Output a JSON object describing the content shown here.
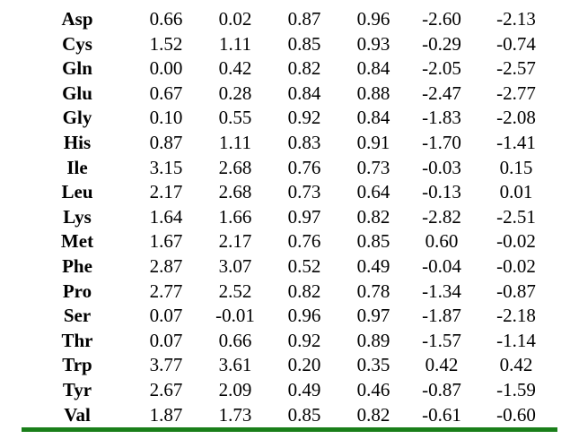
{
  "rule_color": "#1a7f1a",
  "rows": [
    {
      "name": "Asp",
      "values": [
        "0.66",
        "0.02",
        "0.87",
        "0.96",
        "-2.60",
        "-2.13"
      ]
    },
    {
      "name": "Cys",
      "values": [
        "1.52",
        "1.11",
        "0.85",
        "0.93",
        "-0.29",
        "-0.74"
      ]
    },
    {
      "name": "Gln",
      "values": [
        "0.00",
        "0.42",
        "0.82",
        "0.84",
        "-2.05",
        "-2.57"
      ]
    },
    {
      "name": "Glu",
      "values": [
        "0.67",
        "0.28",
        "0.84",
        "0.88",
        "-2.47",
        "-2.77"
      ]
    },
    {
      "name": "Gly",
      "values": [
        "0.10",
        "0.55",
        "0.92",
        "0.84",
        "-1.83",
        "-2.08"
      ]
    },
    {
      "name": "His",
      "values": [
        "0.87",
        "1.11",
        "0.83",
        "0.91",
        "-1.70",
        "-1.41"
      ]
    },
    {
      "name": "Ile",
      "values": [
        "3.15",
        "2.68",
        "0.76",
        "0.73",
        "-0.03",
        "0.15"
      ]
    },
    {
      "name": "Leu",
      "values": [
        "2.17",
        "2.68",
        "0.73",
        "0.64",
        "-0.13",
        "0.01"
      ]
    },
    {
      "name": "Lys",
      "values": [
        "1.64",
        "1.66",
        "0.97",
        "0.82",
        "-2.82",
        "-2.51"
      ]
    },
    {
      "name": "Met",
      "values": [
        "1.67",
        "2.17",
        "0.76",
        "0.85",
        "0.60",
        "-0.02"
      ]
    },
    {
      "name": "Phe",
      "values": [
        "2.87",
        "3.07",
        "0.52",
        "0.49",
        "-0.04",
        "-0.02"
      ]
    },
    {
      "name": "Pro",
      "values": [
        "2.77",
        "2.52",
        "0.82",
        "0.78",
        "-1.34",
        "-0.87"
      ]
    },
    {
      "name": "Ser",
      "values": [
        "0.07",
        "-0.01",
        "0.96",
        "0.97",
        "-1.87",
        "-2.18"
      ]
    },
    {
      "name": "Thr",
      "values": [
        "0.07",
        "0.66",
        "0.92",
        "0.89",
        "-1.57",
        "-1.14"
      ]
    },
    {
      "name": "Trp",
      "values": [
        "3.77",
        "3.61",
        "0.20",
        "0.35",
        "0.42",
        "0.42"
      ]
    },
    {
      "name": "Tyr",
      "values": [
        "2.67",
        "2.09",
        "0.49",
        "0.46",
        "-0.87",
        "-1.59"
      ]
    },
    {
      "name": "Val",
      "values": [
        "1.87",
        "1.73",
        "0.85",
        "0.82",
        "-0.61",
        "-0.60"
      ]
    }
  ]
}
